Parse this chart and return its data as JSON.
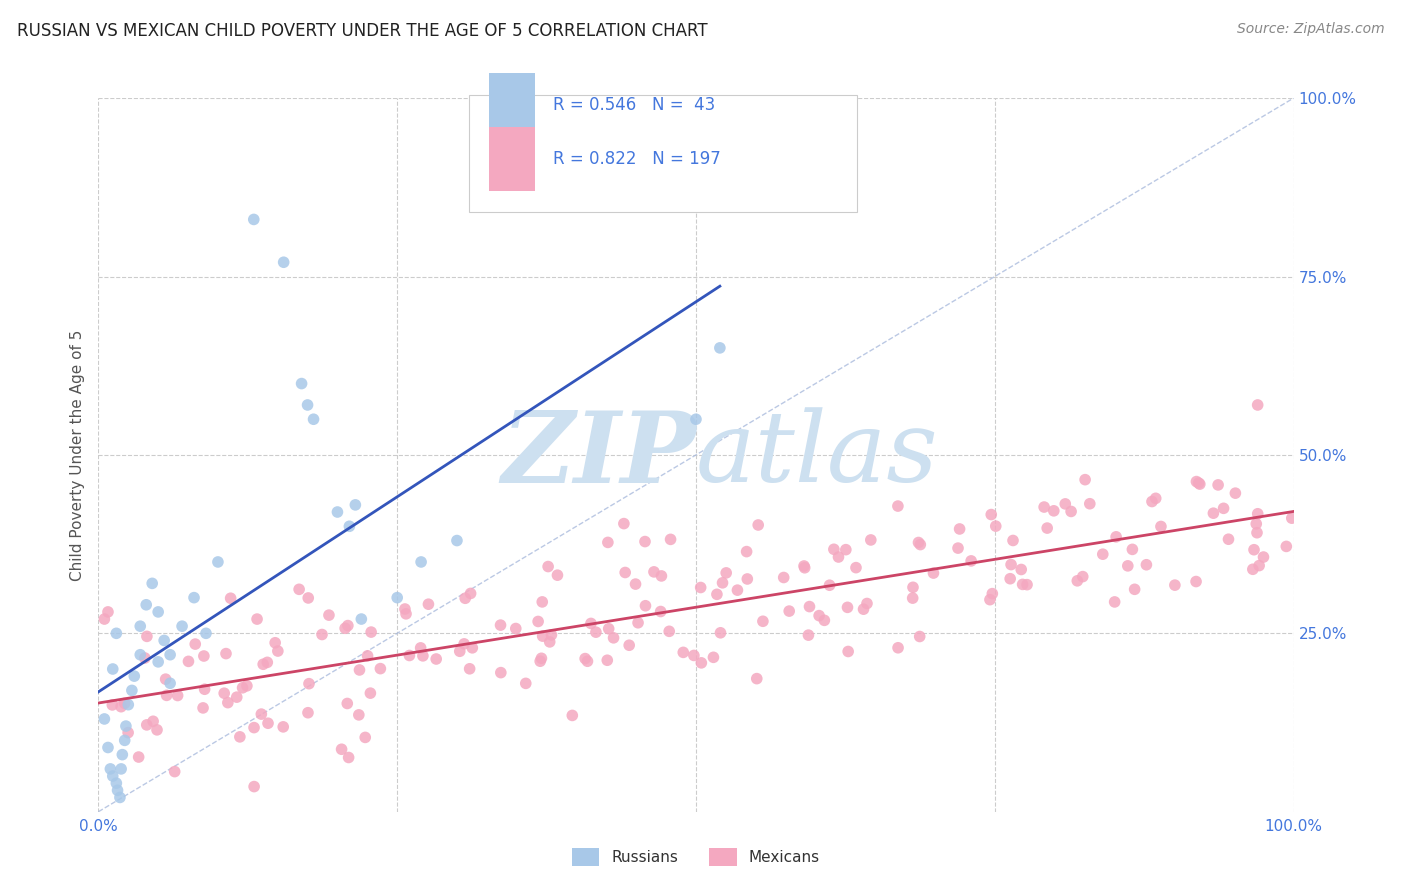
{
  "title": "RUSSIAN VS MEXICAN CHILD POVERTY UNDER THE AGE OF 5 CORRELATION CHART",
  "source": "Source: ZipAtlas.com",
  "ylabel": "Child Poverty Under the Age of 5",
  "xlim": [
    0,
    1.0
  ],
  "ylim": [
    0,
    1.0
  ],
  "russian_R": 0.546,
  "russian_N": 43,
  "mexican_R": 0.822,
  "mexican_N": 197,
  "russian_color": "#a8c8e8",
  "mexican_color": "#f4a8c0",
  "russian_line_color": "#3355bb",
  "mexican_line_color": "#cc4466",
  "diagonal_color": "#aabbdd",
  "background_color": "#ffffff",
  "grid_color": "#cccccc",
  "title_color": "#222222",
  "watermark_zip": "ZIP",
  "watermark_atlas": "atlas",
  "watermark_color": "#cde0f0",
  "legend_text_color": "#4477dd",
  "right_tick_color": "#4477dd",
  "bottom_tick_color": "#4477dd",
  "legend_border_color": "#cccccc"
}
